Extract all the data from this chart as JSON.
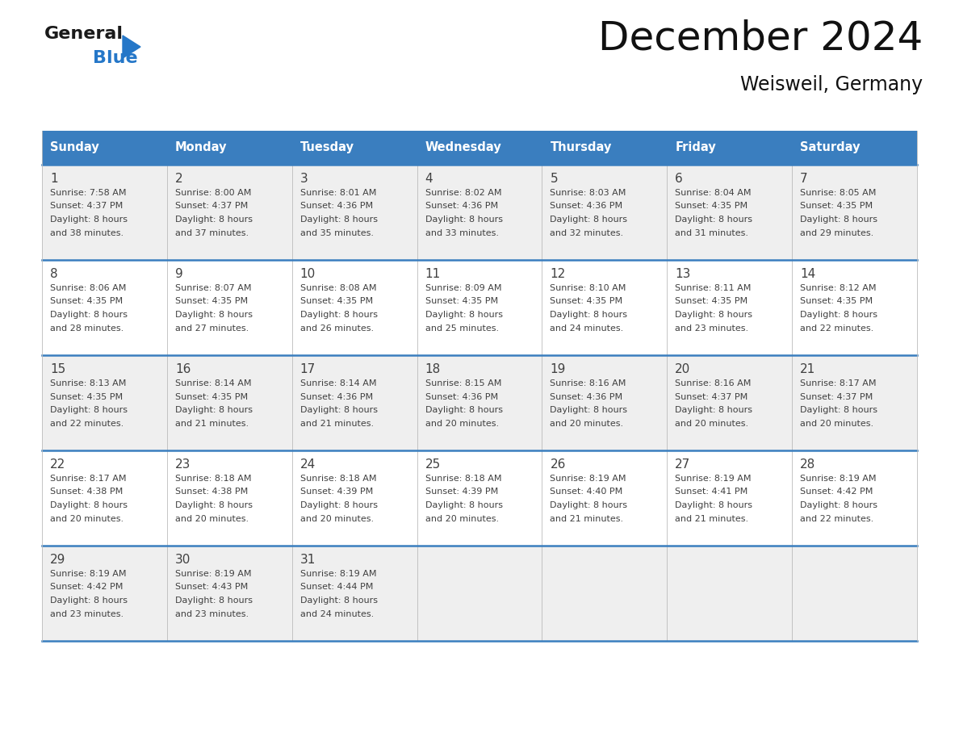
{
  "title": "December 2024",
  "subtitle": "Weisweil, Germany",
  "header_bg": "#3a7ebf",
  "header_text": "#ffffff",
  "row_bg_odd": "#efefef",
  "row_bg_even": "#ffffff",
  "border_color": "#3a7ebf",
  "text_color": "#404040",
  "days_of_week": [
    "Sunday",
    "Monday",
    "Tuesday",
    "Wednesday",
    "Thursday",
    "Friday",
    "Saturday"
  ],
  "weeks": [
    [
      {
        "day": 1,
        "sunrise": "7:58 AM",
        "sunset": "4:37 PM",
        "dl1": "Daylight: 8 hours",
        "dl2": "and 38 minutes."
      },
      {
        "day": 2,
        "sunrise": "8:00 AM",
        "sunset": "4:37 PM",
        "dl1": "Daylight: 8 hours",
        "dl2": "and 37 minutes."
      },
      {
        "day": 3,
        "sunrise": "8:01 AM",
        "sunset": "4:36 PM",
        "dl1": "Daylight: 8 hours",
        "dl2": "and 35 minutes."
      },
      {
        "day": 4,
        "sunrise": "8:02 AM",
        "sunset": "4:36 PM",
        "dl1": "Daylight: 8 hours",
        "dl2": "and 33 minutes."
      },
      {
        "day": 5,
        "sunrise": "8:03 AM",
        "sunset": "4:36 PM",
        "dl1": "Daylight: 8 hours",
        "dl2": "and 32 minutes."
      },
      {
        "day": 6,
        "sunrise": "8:04 AM",
        "sunset": "4:35 PM",
        "dl1": "Daylight: 8 hours",
        "dl2": "and 31 minutes."
      },
      {
        "day": 7,
        "sunrise": "8:05 AM",
        "sunset": "4:35 PM",
        "dl1": "Daylight: 8 hours",
        "dl2": "and 29 minutes."
      }
    ],
    [
      {
        "day": 8,
        "sunrise": "8:06 AM",
        "sunset": "4:35 PM",
        "dl1": "Daylight: 8 hours",
        "dl2": "and 28 minutes."
      },
      {
        "day": 9,
        "sunrise": "8:07 AM",
        "sunset": "4:35 PM",
        "dl1": "Daylight: 8 hours",
        "dl2": "and 27 minutes."
      },
      {
        "day": 10,
        "sunrise": "8:08 AM",
        "sunset": "4:35 PM",
        "dl1": "Daylight: 8 hours",
        "dl2": "and 26 minutes."
      },
      {
        "day": 11,
        "sunrise": "8:09 AM",
        "sunset": "4:35 PM",
        "dl1": "Daylight: 8 hours",
        "dl2": "and 25 minutes."
      },
      {
        "day": 12,
        "sunrise": "8:10 AM",
        "sunset": "4:35 PM",
        "dl1": "Daylight: 8 hours",
        "dl2": "and 24 minutes."
      },
      {
        "day": 13,
        "sunrise": "8:11 AM",
        "sunset": "4:35 PM",
        "dl1": "Daylight: 8 hours",
        "dl2": "and 23 minutes."
      },
      {
        "day": 14,
        "sunrise": "8:12 AM",
        "sunset": "4:35 PM",
        "dl1": "Daylight: 8 hours",
        "dl2": "and 22 minutes."
      }
    ],
    [
      {
        "day": 15,
        "sunrise": "8:13 AM",
        "sunset": "4:35 PM",
        "dl1": "Daylight: 8 hours",
        "dl2": "and 22 minutes."
      },
      {
        "day": 16,
        "sunrise": "8:14 AM",
        "sunset": "4:35 PM",
        "dl1": "Daylight: 8 hours",
        "dl2": "and 21 minutes."
      },
      {
        "day": 17,
        "sunrise": "8:14 AM",
        "sunset": "4:36 PM",
        "dl1": "Daylight: 8 hours",
        "dl2": "and 21 minutes."
      },
      {
        "day": 18,
        "sunrise": "8:15 AM",
        "sunset": "4:36 PM",
        "dl1": "Daylight: 8 hours",
        "dl2": "and 20 minutes."
      },
      {
        "day": 19,
        "sunrise": "8:16 AM",
        "sunset": "4:36 PM",
        "dl1": "Daylight: 8 hours",
        "dl2": "and 20 minutes."
      },
      {
        "day": 20,
        "sunrise": "8:16 AM",
        "sunset": "4:37 PM",
        "dl1": "Daylight: 8 hours",
        "dl2": "and 20 minutes."
      },
      {
        "day": 21,
        "sunrise": "8:17 AM",
        "sunset": "4:37 PM",
        "dl1": "Daylight: 8 hours",
        "dl2": "and 20 minutes."
      }
    ],
    [
      {
        "day": 22,
        "sunrise": "8:17 AM",
        "sunset": "4:38 PM",
        "dl1": "Daylight: 8 hours",
        "dl2": "and 20 minutes."
      },
      {
        "day": 23,
        "sunrise": "8:18 AM",
        "sunset": "4:38 PM",
        "dl1": "Daylight: 8 hours",
        "dl2": "and 20 minutes."
      },
      {
        "day": 24,
        "sunrise": "8:18 AM",
        "sunset": "4:39 PM",
        "dl1": "Daylight: 8 hours",
        "dl2": "and 20 minutes."
      },
      {
        "day": 25,
        "sunrise": "8:18 AM",
        "sunset": "4:39 PM",
        "dl1": "Daylight: 8 hours",
        "dl2": "and 20 minutes."
      },
      {
        "day": 26,
        "sunrise": "8:19 AM",
        "sunset": "4:40 PM",
        "dl1": "Daylight: 8 hours",
        "dl2": "and 21 minutes."
      },
      {
        "day": 27,
        "sunrise": "8:19 AM",
        "sunset": "4:41 PM",
        "dl1": "Daylight: 8 hours",
        "dl2": "and 21 minutes."
      },
      {
        "day": 28,
        "sunrise": "8:19 AM",
        "sunset": "4:42 PM",
        "dl1": "Daylight: 8 hours",
        "dl2": "and 22 minutes."
      }
    ],
    [
      {
        "day": 29,
        "sunrise": "8:19 AM",
        "sunset": "4:42 PM",
        "dl1": "Daylight: 8 hours",
        "dl2": "and 23 minutes."
      },
      {
        "day": 30,
        "sunrise": "8:19 AM",
        "sunset": "4:43 PM",
        "dl1": "Daylight: 8 hours",
        "dl2": "and 23 minutes."
      },
      {
        "day": 31,
        "sunrise": "8:19 AM",
        "sunset": "4:44 PM",
        "dl1": "Daylight: 8 hours",
        "dl2": "and 24 minutes."
      },
      null,
      null,
      null,
      null
    ]
  ],
  "logo_general_color": "#1a1a1a",
  "logo_blue_color": "#2577c8",
  "logo_triangle_color": "#2577c8"
}
